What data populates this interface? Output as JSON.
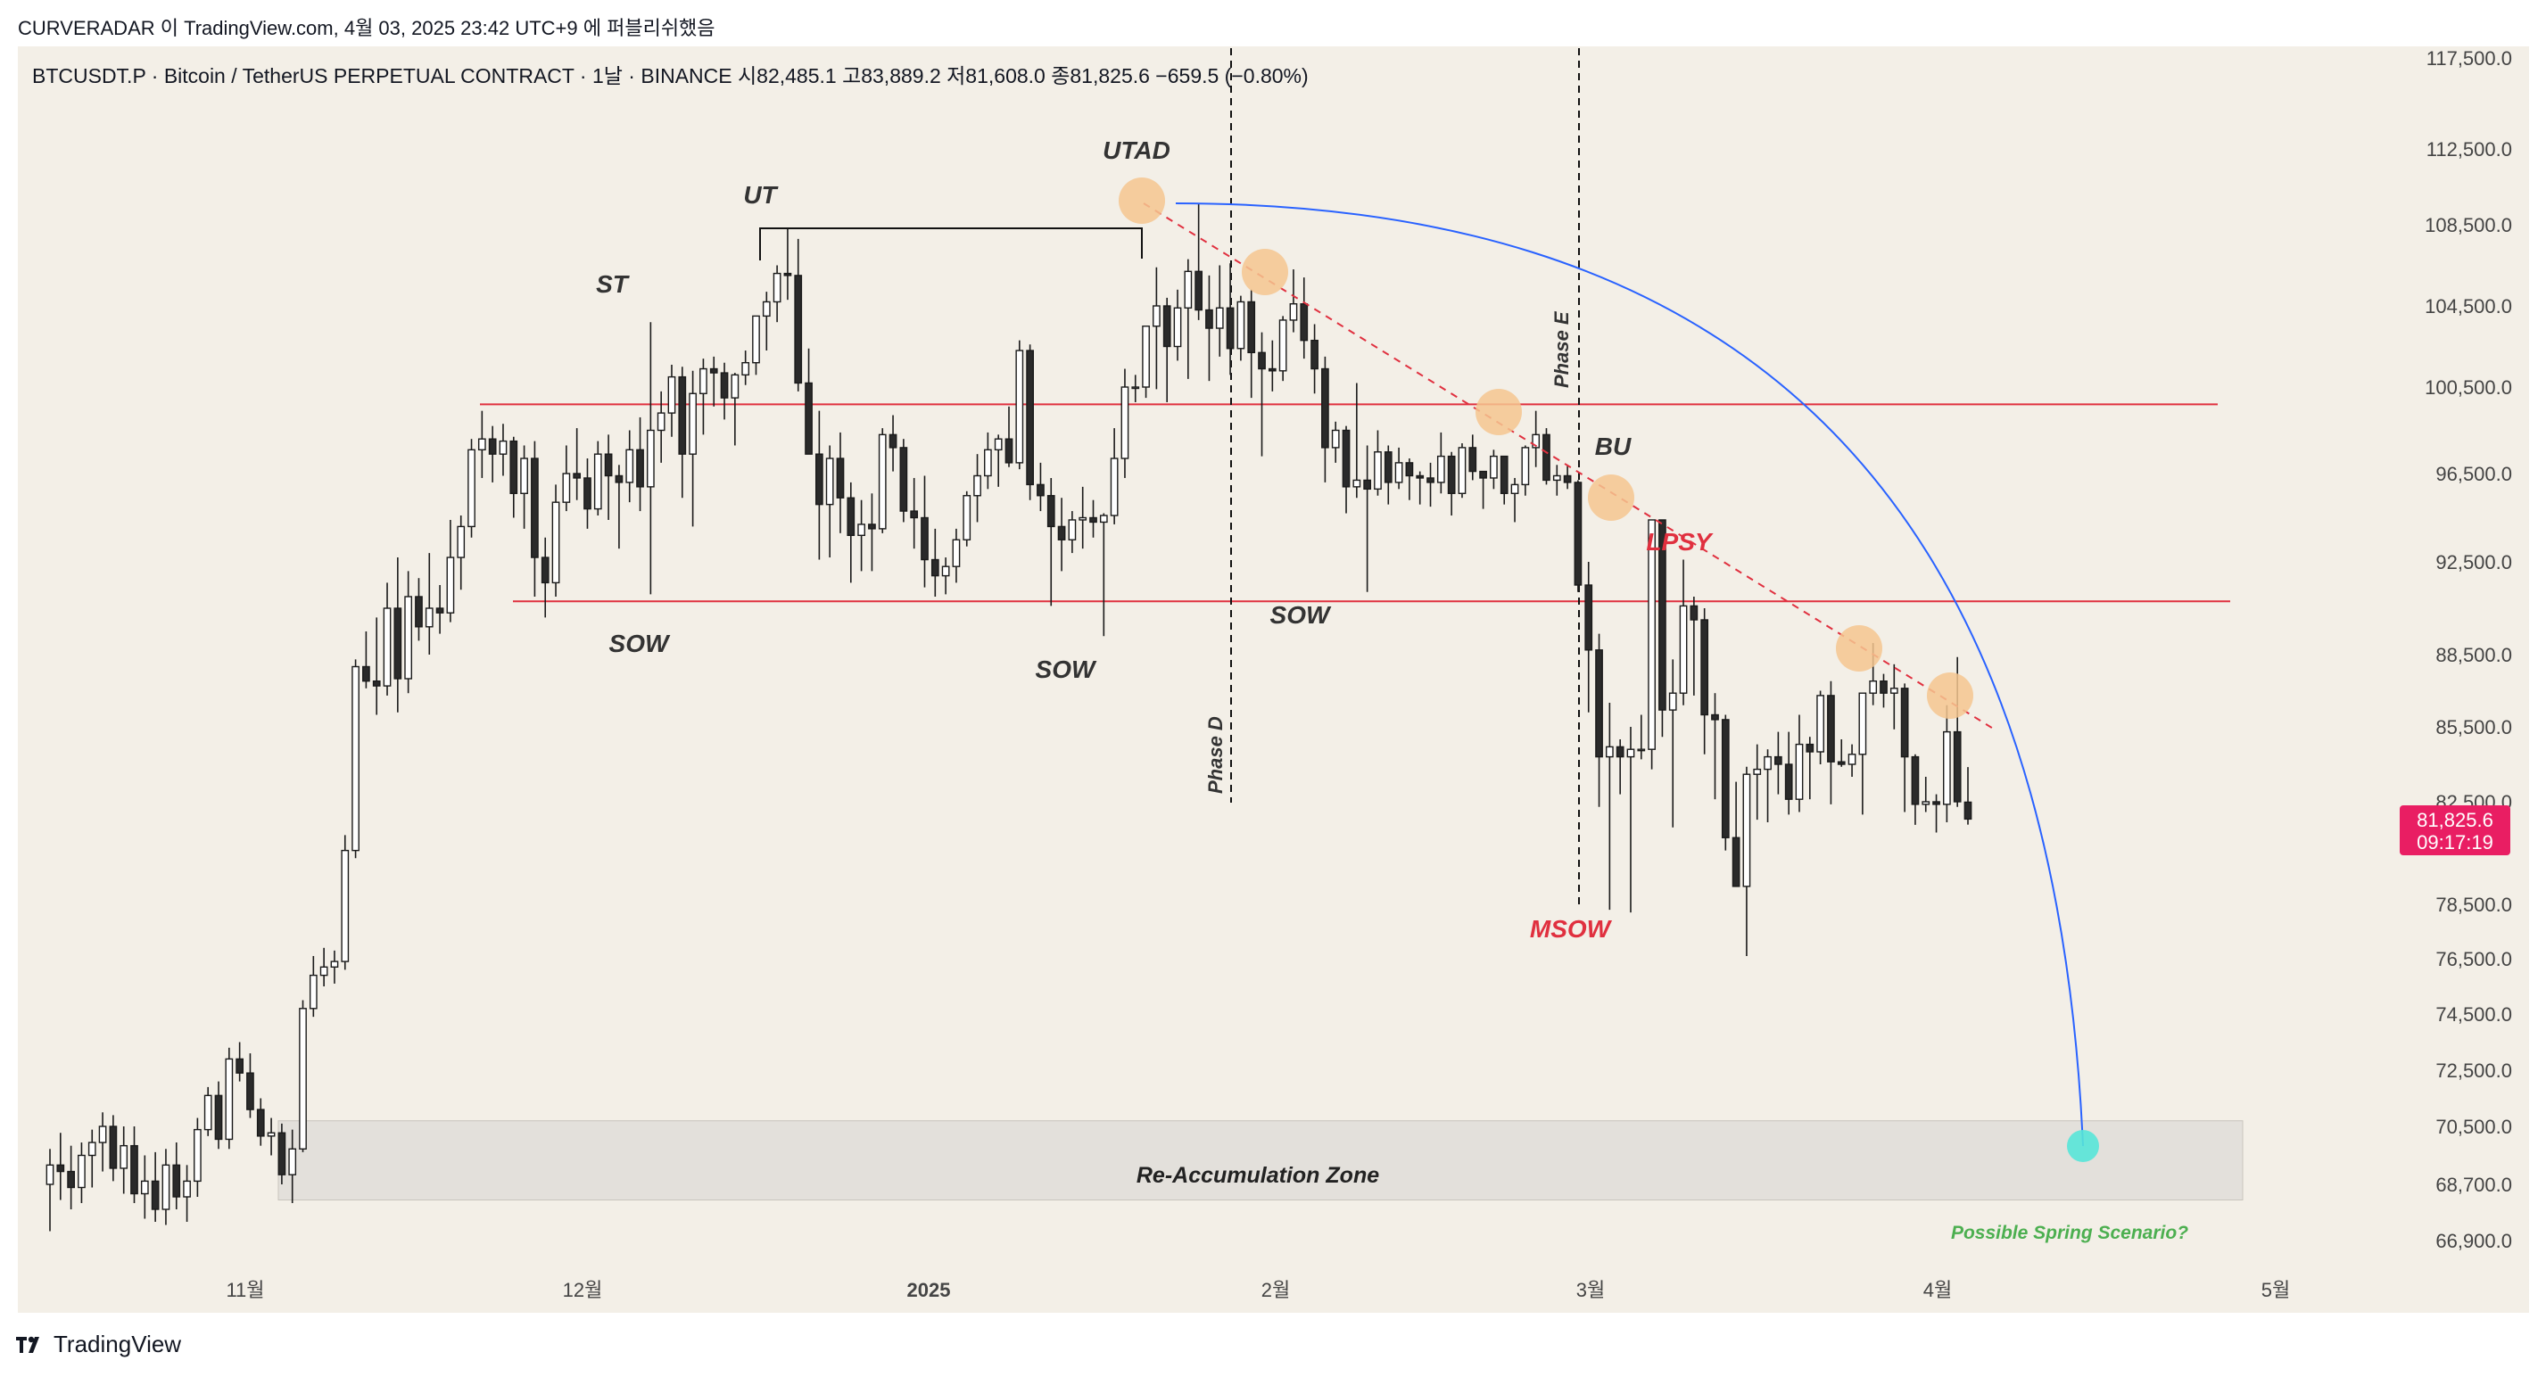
{
  "header": {
    "author_line": "CURVERADAR 이 TradingView.com, 4월 03, 2025 23:42 UTC+9 에 퍼블리쉬했음"
  },
  "footer": {
    "brand": "TradingView"
  },
  "colors": {
    "background": "#f3efe7",
    "support_resistance": "#e0303f",
    "arc": "#2962ff",
    "highlight": "#f5c58f",
    "target": "#57e6d8",
    "price_badge": "#e91e63",
    "zone_fill": "#e3e0db"
  },
  "chart_data": {
    "type": "candlestick",
    "title": "BTCUSDT.P · Bitcoin / TetherUS PERPETUAL CONTRACT · 1날 · BINANCE  시82,485.1  고83,889.2  저81,608.0  종81,825.6  −659.5 (−0.80%)",
    "y_ticks": [
      "117,500.0",
      "112,500.0",
      "108,500.0",
      "104,500.0",
      "100,500.0",
      "96,500.0",
      "92,500.0",
      "88,500.0",
      "85,500.0",
      "82,500.0",
      "78,500.0",
      "76,500.0",
      "74,500.0",
      "72,500.0",
      "70,500.0",
      "68,700.0",
      "66,900.0"
    ],
    "x_ticks": [
      "11월",
      "12월",
      "2025",
      "2월",
      "3월",
      "4월",
      "5월"
    ],
    "current_price": "81,825.6",
    "countdown": "09:17:19",
    "ohlc_points": [
      [
        68700,
        69800,
        67200,
        69300
      ],
      [
        69300,
        70300,
        68200,
        69100
      ],
      [
        69100,
        69900,
        67900,
        68600
      ],
      [
        68600,
        70000,
        68100,
        69600
      ],
      [
        69600,
        70400,
        68600,
        70000
      ],
      [
        70000,
        71000,
        69100,
        70500
      ],
      [
        70500,
        70900,
        68800,
        69200
      ],
      [
        69200,
        70500,
        68400,
        69900
      ],
      [
        69900,
        70500,
        68100,
        68400
      ],
      [
        68400,
        69600,
        67600,
        68800
      ],
      [
        68800,
        69700,
        67500,
        67900
      ],
      [
        67900,
        69800,
        67400,
        69300
      ],
      [
        69300,
        70000,
        67900,
        68300
      ],
      [
        68300,
        69300,
        67500,
        68800
      ],
      [
        68800,
        70800,
        68300,
        70400
      ],
      [
        70400,
        71900,
        70200,
        71600
      ],
      [
        71600,
        72100,
        69800,
        70100
      ],
      [
        70100,
        73300,
        69800,
        72900
      ],
      [
        72900,
        73500,
        72100,
        72400
      ],
      [
        72400,
        73100,
        70800,
        71100
      ],
      [
        71100,
        71500,
        69900,
        70200
      ],
      [
        70200,
        70800,
        69600,
        70300
      ],
      [
        70300,
        70600,
        68700,
        69000
      ],
      [
        69000,
        70400,
        68100,
        69800
      ],
      [
        69800,
        75000,
        69700,
        74700
      ],
      [
        74700,
        76600,
        74400,
        75900
      ],
      [
        75900,
        76900,
        75500,
        76200
      ],
      [
        76200,
        76800,
        75600,
        76400
      ],
      [
        76400,
        81200,
        76100,
        80600
      ],
      [
        80600,
        88300,
        80300,
        88000
      ],
      [
        88000,
        89500,
        87100,
        87400
      ],
      [
        87400,
        90100,
        86000,
        87200
      ],
      [
        87200,
        91600,
        86800,
        90500
      ],
      [
        90500,
        92700,
        86100,
        87500
      ],
      [
        87500,
        92100,
        86900,
        91000
      ],
      [
        91000,
        91800,
        89100,
        89700
      ],
      [
        89700,
        92900,
        88500,
        90500
      ],
      [
        90500,
        91500,
        89400,
        90300
      ],
      [
        90300,
        94400,
        89900,
        92700
      ],
      [
        92700,
        94600,
        91300,
        94100
      ],
      [
        94100,
        98100,
        93600,
        97600
      ],
      [
        97600,
        99400,
        96300,
        98100
      ],
      [
        98100,
        98700,
        96100,
        97400
      ],
      [
        97400,
        98800,
        96400,
        98000
      ],
      [
        98000,
        98200,
        94500,
        95600
      ],
      [
        95600,
        97800,
        94000,
        97200
      ],
      [
        97200,
        98000,
        91000,
        92700
      ],
      [
        92700,
        93600,
        90100,
        91600
      ],
      [
        91600,
        96000,
        91000,
        95200
      ],
      [
        95200,
        97800,
        94800,
        96500
      ],
      [
        96500,
        98600,
        95300,
        96300
      ],
      [
        96300,
        97200,
        94000,
        94900
      ],
      [
        94900,
        98000,
        94600,
        97400
      ],
      [
        97400,
        98300,
        94400,
        96400
      ],
      [
        96400,
        96900,
        93100,
        96100
      ],
      [
        96100,
        98500,
        95200,
        97600
      ],
      [
        97600,
        99100,
        94800,
        95900
      ],
      [
        95900,
        103700,
        91100,
        98500
      ],
      [
        98500,
        100300,
        97000,
        99300
      ],
      [
        99300,
        101600,
        98200,
        101000
      ],
      [
        101000,
        101500,
        95400,
        97400
      ],
      [
        97400,
        101300,
        94100,
        100200
      ],
      [
        100200,
        101900,
        98300,
        101400
      ],
      [
        101400,
        102000,
        99600,
        101200
      ],
      [
        101200,
        101700,
        99000,
        100000
      ],
      [
        100000,
        101200,
        97800,
        101100
      ],
      [
        101100,
        102300,
        100600,
        101700
      ],
      [
        101700,
        104000,
        101100,
        104000
      ],
      [
        104000,
        105200,
        102300,
        104700
      ],
      [
        104700,
        106500,
        103700,
        106100
      ],
      [
        106100,
        108300,
        104800,
        106000
      ],
      [
        106000,
        107800,
        100300,
        100700
      ],
      [
        100700,
        102400,
        97800,
        97400
      ],
      [
        97400,
        99400,
        92600,
        95100
      ],
      [
        95100,
        97800,
        92700,
        97200
      ],
      [
        97200,
        98400,
        93800,
        95400
      ],
      [
        95400,
        96100,
        91600,
        93700
      ],
      [
        93700,
        95300,
        92100,
        94200
      ],
      [
        94200,
        95600,
        92100,
        94000
      ],
      [
        94000,
        98600,
        93800,
        98300
      ],
      [
        98300,
        99200,
        96600,
        97700
      ],
      [
        97700,
        98100,
        94300,
        94800
      ],
      [
        94800,
        96300,
        93100,
        94500
      ],
      [
        94500,
        96400,
        91400,
        92600
      ],
      [
        92600,
        94000,
        91000,
        91900
      ],
      [
        91900,
        92700,
        91100,
        92300
      ],
      [
        92300,
        94000,
        91600,
        93500
      ],
      [
        93500,
        95700,
        93200,
        95500
      ],
      [
        95500,
        97400,
        94300,
        96400
      ],
      [
        96400,
        98400,
        95800,
        97600
      ],
      [
        97600,
        98300,
        95900,
        98100
      ],
      [
        98100,
        99600,
        96800,
        97000
      ],
      [
        97000,
        102800,
        96700,
        102300
      ],
      [
        102300,
        102600,
        95300,
        96000
      ],
      [
        96000,
        97000,
        94800,
        95500
      ],
      [
        95500,
        96300,
        90600,
        94100
      ],
      [
        94100,
        95400,
        92100,
        93500
      ],
      [
        93500,
        94800,
        92900,
        94400
      ],
      [
        94400,
        95900,
        93100,
        94500
      ],
      [
        94500,
        95300,
        93600,
        94300
      ],
      [
        94300,
        94700,
        89300,
        94600
      ],
      [
        94600,
        98600,
        94200,
        97200
      ],
      [
        97200,
        101400,
        96300,
        100500
      ],
      [
        100500,
        101100,
        99800,
        100500
      ],
      [
        100500,
        102500,
        100000,
        103500
      ],
      [
        103500,
        106400,
        100400,
        104500
      ],
      [
        104500,
        104900,
        99800,
        102500
      ],
      [
        102500,
        105300,
        101800,
        104400
      ],
      [
        104400,
        106800,
        100900,
        106200
      ],
      [
        106200,
        109600,
        103800,
        104300
      ],
      [
        104300,
        106000,
        100800,
        103400
      ],
      [
        103400,
        106500,
        102000,
        104400
      ],
      [
        104400,
        106600,
        101100,
        102400
      ],
      [
        102400,
        105000,
        101800,
        104700
      ],
      [
        104700,
        105300,
        100000,
        102200
      ],
      [
        102200,
        103200,
        97300,
        101400
      ],
      [
        101400,
        102800,
        100300,
        101300
      ],
      [
        101300,
        104000,
        100800,
        103800
      ],
      [
        103800,
        106300,
        103200,
        104600
      ],
      [
        104600,
        105900,
        101900,
        102800
      ],
      [
        102800,
        103600,
        100200,
        101400
      ],
      [
        101400,
        102000,
        96100,
        97700
      ],
      [
        97700,
        98900,
        97000,
        98500
      ],
      [
        98500,
        98700,
        94700,
        95900
      ],
      [
        95900,
        100700,
        95400,
        96200
      ],
      [
        96200,
        97800,
        91200,
        95800
      ],
      [
        95800,
        98500,
        95500,
        97500
      ],
      [
        97500,
        97800,
        95100,
        96100
      ],
      [
        96100,
        97700,
        95800,
        97000
      ],
      [
        97000,
        97200,
        95300,
        96400
      ],
      [
        96400,
        96600,
        95100,
        96300
      ],
      [
        96300,
        97000,
        95000,
        96100
      ],
      [
        96100,
        98400,
        95600,
        97300
      ],
      [
        97300,
        97500,
        94600,
        95600
      ],
      [
        95600,
        97900,
        95400,
        97700
      ],
      [
        97700,
        98300,
        96200,
        96600
      ],
      [
        96600,
        96600,
        94900,
        96300
      ],
      [
        96300,
        97600,
        95800,
        97300
      ],
      [
        97300,
        97300,
        95100,
        95600
      ],
      [
        95600,
        96300,
        94300,
        96000
      ],
      [
        96000,
        97800,
        95500,
        97700
      ],
      [
        97700,
        99400,
        96800,
        98300
      ],
      [
        98300,
        98600,
        96000,
        96200
      ],
      [
        96200,
        96900,
        95500,
        96400
      ],
      [
        96400,
        96900,
        95800,
        96100
      ],
      [
        96100,
        96200,
        91200,
        91500
      ],
      [
        91500,
        92500,
        86100,
        88700
      ],
      [
        88700,
        89400,
        82300,
        84300
      ],
      [
        84300,
        86500,
        78300,
        84700
      ],
      [
        84700,
        85000,
        82800,
        84300
      ],
      [
        84300,
        85500,
        78200,
        84600
      ],
      [
        84600,
        86000,
        84200,
        84600
      ],
      [
        84600,
        93000,
        83800,
        94400
      ],
      [
        94400,
        94400,
        85100,
        86200
      ],
      [
        86200,
        88300,
        81500,
        86900
      ],
      [
        86900,
        92600,
        86400,
        90600
      ],
      [
        90600,
        91000,
        86800,
        90000
      ],
      [
        90000,
        90500,
        84400,
        86000
      ],
      [
        86000,
        86900,
        82600,
        85800
      ],
      [
        85800,
        86000,
        80600,
        81100
      ],
      [
        81100,
        83300,
        80300,
        79200
      ],
      [
        79200,
        83900,
        76600,
        83600
      ],
      [
        83600,
        84800,
        81800,
        83800
      ],
      [
        83800,
        84600,
        81700,
        84300
      ],
      [
        84300,
        85300,
        82800,
        84000
      ],
      [
        84000,
        85300,
        82000,
        82600
      ],
      [
        82600,
        86000,
        82100,
        84800
      ],
      [
        84800,
        85100,
        82600,
        84500
      ],
      [
        84500,
        87000,
        84000,
        86800
      ],
      [
        86800,
        87400,
        82400,
        84100
      ],
      [
        84100,
        85000,
        83900,
        84000
      ],
      [
        84000,
        84800,
        83500,
        84400
      ],
      [
        84400,
        84700,
        82000,
        86900
      ],
      [
        86900,
        89000,
        86400,
        87400
      ],
      [
        87400,
        87700,
        86300,
        86900
      ],
      [
        86900,
        88100,
        85400,
        87100
      ],
      [
        87100,
        87300,
        82100,
        84300
      ],
      [
        84300,
        84400,
        81600,
        82400
      ],
      [
        82400,
        83500,
        82100,
        82500
      ],
      [
        82500,
        82800,
        81300,
        82400
      ],
      [
        82400,
        86400,
        81700,
        85300
      ],
      [
        85300,
        88400,
        82300,
        82500
      ],
      [
        82485,
        83889,
        81608,
        81826
      ]
    ],
    "resistance_level": 99700,
    "support_level": 90800,
    "reaccumulation_zone": [
      68200,
      70700
    ],
    "trendline_points": [
      "UTAD",
      "LPSY"
    ],
    "annotations": {
      "st": "ST",
      "ut": "UT",
      "utad": "UTAD",
      "sow1": "SOW",
      "sow2": "SOW",
      "sow3": "SOW",
      "bu": "BU",
      "lpsy": "LPSY",
      "msow": "MSOW",
      "phase_d": "Phase D",
      "phase_e": "Phase E",
      "zone": "Re-Accumulation Zone",
      "spring": "Possible Spring Scenario?"
    }
  }
}
